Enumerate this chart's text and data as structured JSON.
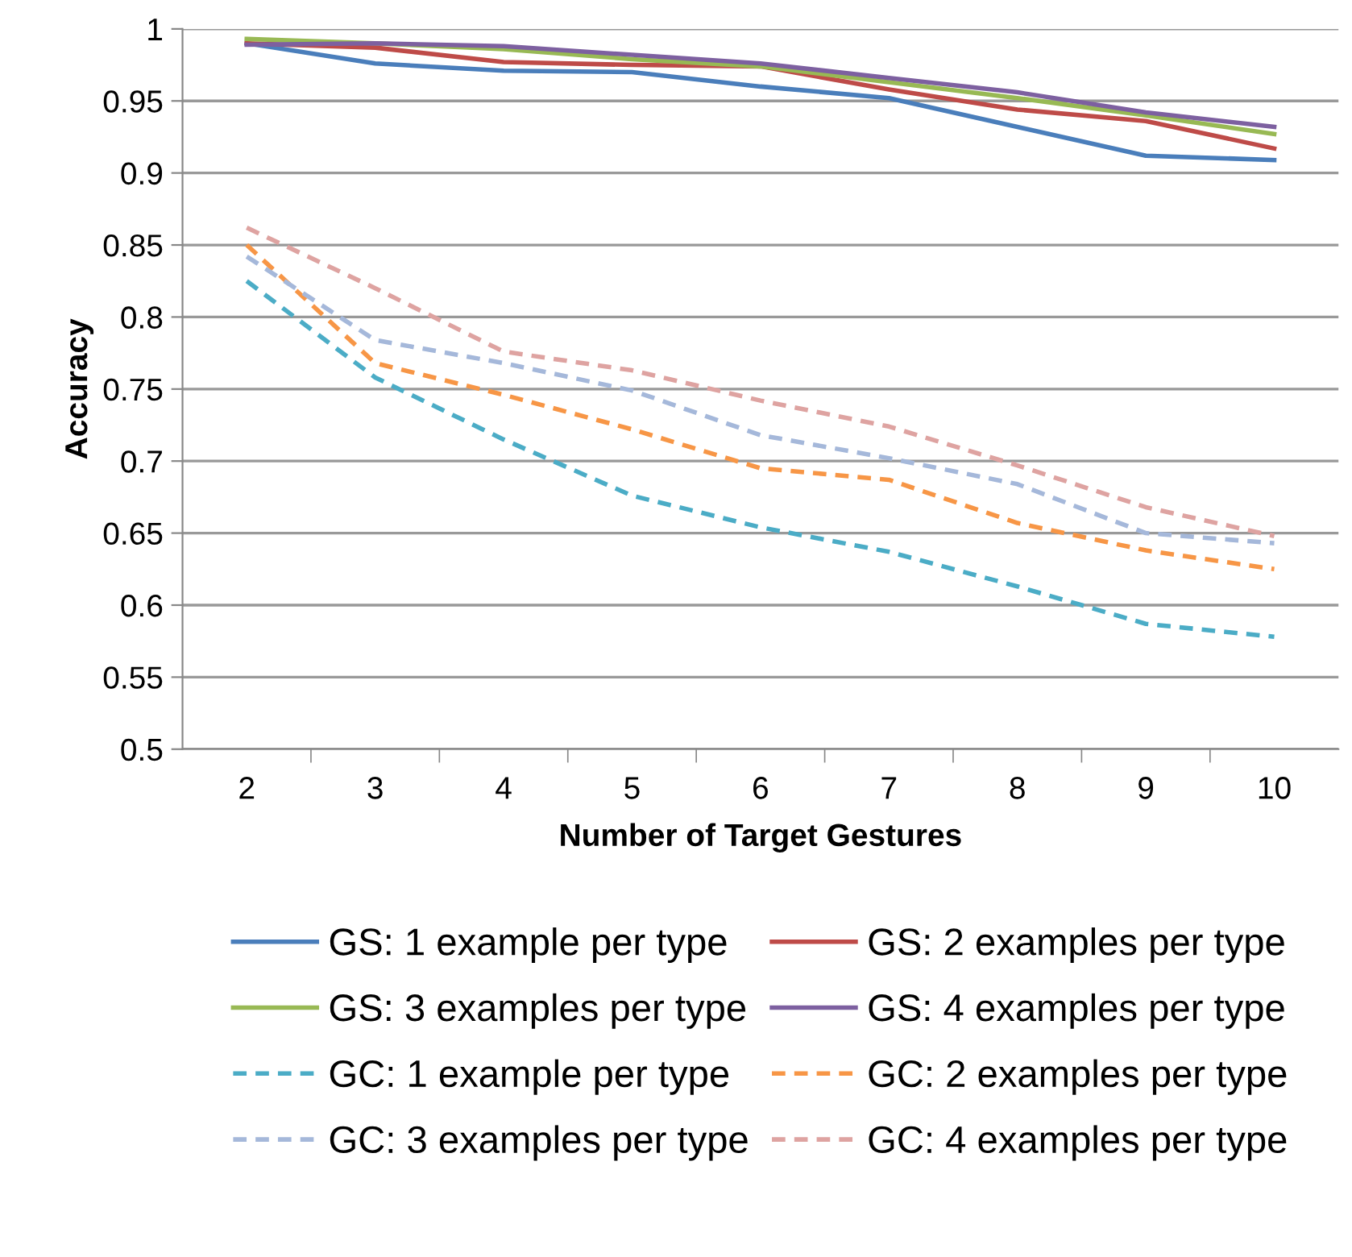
{
  "chart_data": {
    "type": "line",
    "xlabel": "Number of Target Gestures",
    "ylabel": "Accuracy",
    "categories": [
      "2",
      "3",
      "4",
      "5",
      "6",
      "7",
      "8",
      "9",
      "10"
    ],
    "ylim": [
      0.5,
      1
    ],
    "yticks": [
      {
        "value": 0.5,
        "label": "0.5"
      },
      {
        "value": 0.55,
        "label": "0.55"
      },
      {
        "value": 0.6,
        "label": "0.6"
      },
      {
        "value": 0.65,
        "label": "0.65"
      },
      {
        "value": 0.7,
        "label": "0.7"
      },
      {
        "value": 0.75,
        "label": "0.75"
      },
      {
        "value": 0.8,
        "label": "0.8"
      },
      {
        "value": 0.85,
        "label": "0.85"
      },
      {
        "value": 0.9,
        "label": "0.9"
      },
      {
        "value": 0.95,
        "label": "0.95"
      },
      {
        "value": 1,
        "label": "1"
      }
    ],
    "grid": "y",
    "legend": "bottom",
    "marker": "none",
    "series": [
      {
        "name": "GS: 1 example per type",
        "color": "#4a7ebb",
        "line_style": "solid",
        "values": [
          0.99,
          0.976,
          0.971,
          0.97,
          0.96,
          0.952,
          0.932,
          0.912,
          0.909
        ]
      },
      {
        "name": "GS: 2 examples per type",
        "color": "#be4b48",
        "line_style": "solid",
        "values": [
          0.99,
          0.987,
          0.977,
          0.975,
          0.974,
          0.958,
          0.944,
          0.936,
          0.917
        ]
      },
      {
        "name": "GS: 3 examples per type",
        "color": "#98b954",
        "line_style": "solid",
        "values": [
          0.993,
          0.99,
          0.986,
          0.979,
          0.974,
          0.963,
          0.952,
          0.94,
          0.927
        ]
      },
      {
        "name": "GS: 4 examples per type",
        "color": "#7d60a0",
        "line_style": "solid",
        "values": [
          0.989,
          0.99,
          0.988,
          0.982,
          0.976,
          0.966,
          0.956,
          0.942,
          0.932
        ]
      },
      {
        "name": "GC: 1 example per type",
        "color": "#4bacc6",
        "line_style": "dashed",
        "values": [
          0.825,
          0.758,
          0.715,
          0.676,
          0.654,
          0.637,
          0.613,
          0.587,
          0.578
        ]
      },
      {
        "name": "GC: 2 examples per type",
        "color": "#f79646",
        "line_style": "dashed",
        "values": [
          0.85,
          0.768,
          0.746,
          0.722,
          0.695,
          0.687,
          0.657,
          0.638,
          0.625
        ]
      },
      {
        "name": "GC: 3 examples per type",
        "color": "#a5b8da",
        "line_style": "dashed",
        "values": [
          0.842,
          0.784,
          0.768,
          0.749,
          0.718,
          0.702,
          0.684,
          0.65,
          0.643
        ]
      },
      {
        "name": "GC: 4 examples per type",
        "color": "#dea3a1",
        "line_style": "dashed",
        "values": [
          0.862,
          0.82,
          0.776,
          0.763,
          0.742,
          0.724,
          0.697,
          0.668,
          0.648
        ]
      }
    ]
  }
}
